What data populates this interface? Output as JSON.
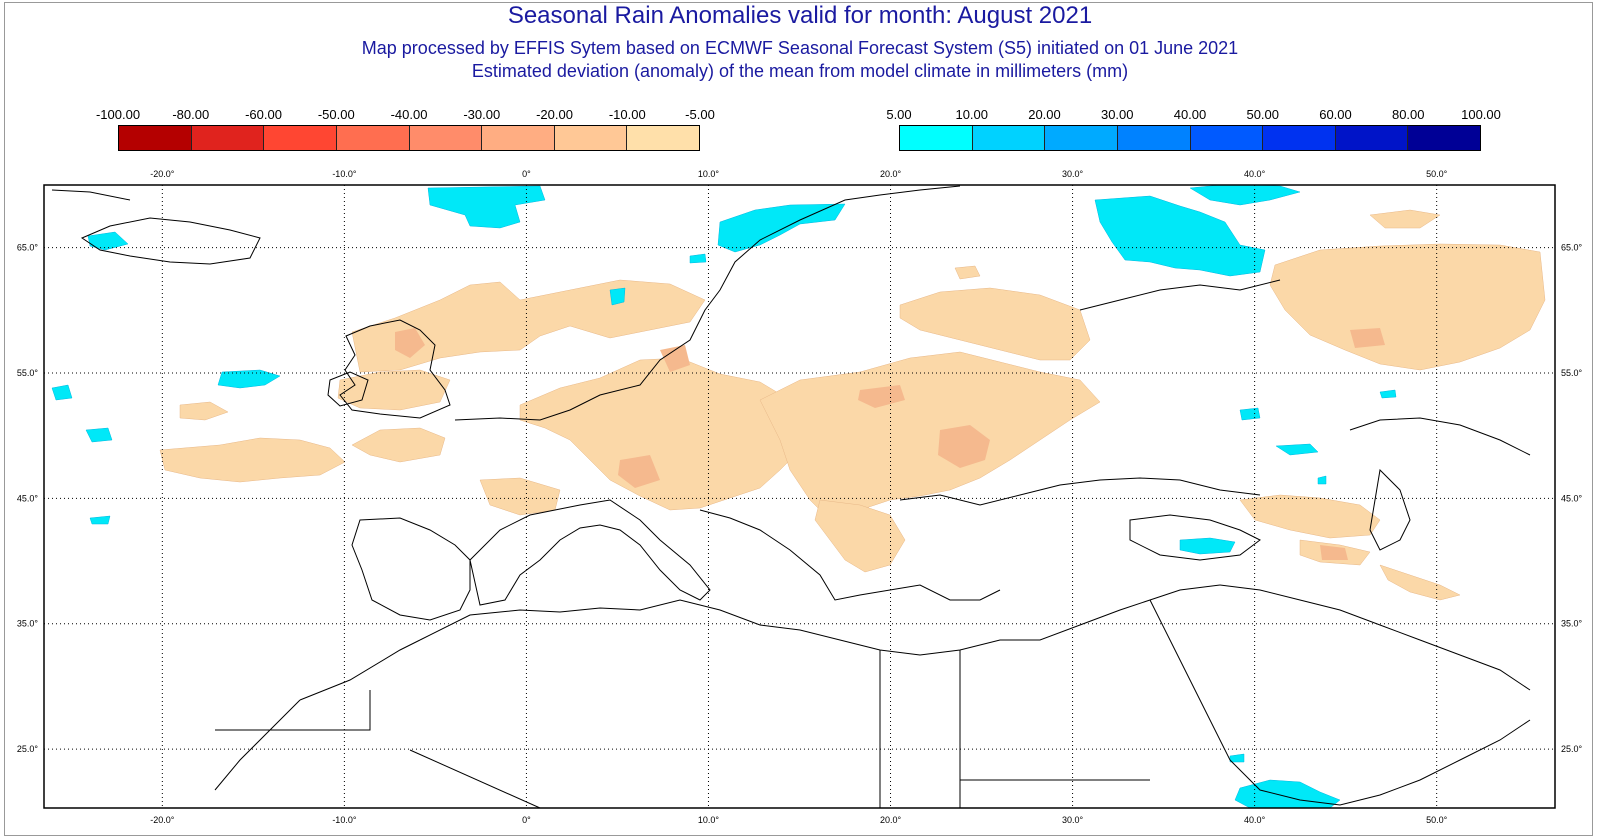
{
  "title": "Seasonal Rain Anomalies valid for month: August 2021",
  "subtitle_1": "Map processed by EFFIS Sytem based on ECMWF Seasonal Forecast System (S5) initiated on 01 June 2021",
  "subtitle_2": "Estimated deviation (anomaly) of the mean from model climate in millimeters (mm)",
  "legend_negative": {
    "labels": [
      "-100.00",
      "-80.00",
      "-60.00",
      "-50.00",
      "-40.00",
      "-30.00",
      "-20.00",
      "-10.00",
      "-5.00"
    ],
    "colors": [
      "#b40000",
      "#e0231e",
      "#ff4632",
      "#ff6e50",
      "#ff8c6a",
      "#ffad82",
      "#ffc896",
      "#ffe0aa"
    ]
  },
  "legend_positive": {
    "labels": [
      "5.00",
      "10.00",
      "20.00",
      "30.00",
      "40.00",
      "50.00",
      "60.00",
      "80.00",
      "100.00"
    ],
    "colors": [
      "#00ffff",
      "#00d2ff",
      "#00aaff",
      "#0082ff",
      "#005aff",
      "#0032f0",
      "#0014c8",
      "#000096"
    ]
  },
  "map": {
    "lon_ticks": [
      "-20.0°",
      "-10.0°",
      "0°",
      "10.0°",
      "20.0°",
      "30.0°",
      "40.0°",
      "50.0°"
    ],
    "lon_values": [
      -20,
      -10,
      0,
      10,
      20,
      30,
      40,
      50
    ],
    "lat_ticks": [
      "65.0°",
      "55.0°",
      "45.0°",
      "35.0°",
      "25.0°"
    ],
    "lat_values": [
      65,
      55,
      45,
      35,
      25
    ],
    "lon_range": [
      -26.5,
      56.5
    ],
    "lat_range": [
      20.3,
      70.0
    ],
    "dry_anomaly_color": "#fbd8a8",
    "dry_strong_color": "#f5b98e",
    "wet_anomaly_color": "#00e8f8",
    "coast_color": "#000000",
    "grid_style": "dotted"
  }
}
